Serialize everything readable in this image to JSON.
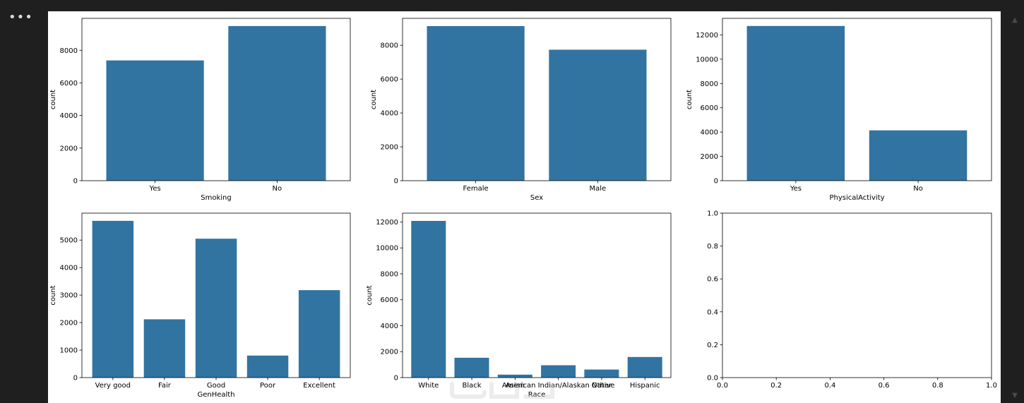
{
  "ui": {
    "menu_label": "•••",
    "scroll_up": "▲",
    "scroll_down": "▼"
  },
  "chart_data": [
    {
      "type": "bar",
      "categories": [
        "Yes",
        "No"
      ],
      "values": [
        7380,
        9490
      ],
      "xlabel": "Smoking",
      "ylabel": "count",
      "ylim": [
        0,
        9960
      ],
      "yticks": [
        0,
        2000,
        4000,
        6000,
        8000
      ],
      "color": "#3274a1",
      "grid": false
    },
    {
      "type": "bar",
      "categories": [
        "Female",
        "Male"
      ],
      "values": [
        9130,
        7740
      ],
      "xlabel": "Sex",
      "ylabel": "count",
      "ylim": [
        0,
        9590
      ],
      "yticks": [
        0,
        2000,
        4000,
        6000,
        8000
      ],
      "color": "#3274a1",
      "grid": false
    },
    {
      "type": "bar",
      "categories": [
        "Yes",
        "No"
      ],
      "values": [
        12730,
        4140
      ],
      "xlabel": "PhysicalActivity",
      "ylabel": "count",
      "ylim": [
        0,
        13360
      ],
      "yticks": [
        0,
        2000,
        4000,
        6000,
        8000,
        10000,
        12000
      ],
      "color": "#3274a1",
      "grid": false
    },
    {
      "type": "bar",
      "categories": [
        "Very good",
        "Fair",
        "Good",
        "Poor",
        "Excellent"
      ],
      "values": [
        5700,
        2120,
        5050,
        800,
        3180
      ],
      "xlabel": "GenHealth",
      "ylabel": "count",
      "ylim": [
        0,
        5980
      ],
      "yticks": [
        0,
        1000,
        2000,
        3000,
        4000,
        5000
      ],
      "color": "#3274a1",
      "grid": false
    },
    {
      "type": "bar",
      "categories": [
        "White",
        "Black",
        "Asian",
        "American Indian/Alaskan Native",
        "Other",
        "Hispanic"
      ],
      "values": [
        12080,
        1530,
        230,
        950,
        620,
        1590
      ],
      "xlabel": "Race",
      "ylabel": "count",
      "ylim": [
        0,
        12680
      ],
      "yticks": [
        0,
        2000,
        4000,
        6000,
        8000,
        10000,
        12000
      ],
      "color": "#3274a1",
      "grid": false
    },
    {
      "type": "bar",
      "categories": [],
      "values": [],
      "xlabel": "",
      "ylabel": "",
      "xlim": [
        0,
        1
      ],
      "ylim": [
        0,
        1
      ],
      "xticks": [
        "0.0",
        "0.2",
        "0.4",
        "0.6",
        "0.8",
        "1.0"
      ],
      "yticks": [
        "0.0",
        "0.2",
        "0.4",
        "0.6",
        "0.8",
        "1.0"
      ],
      "grid": false
    }
  ]
}
